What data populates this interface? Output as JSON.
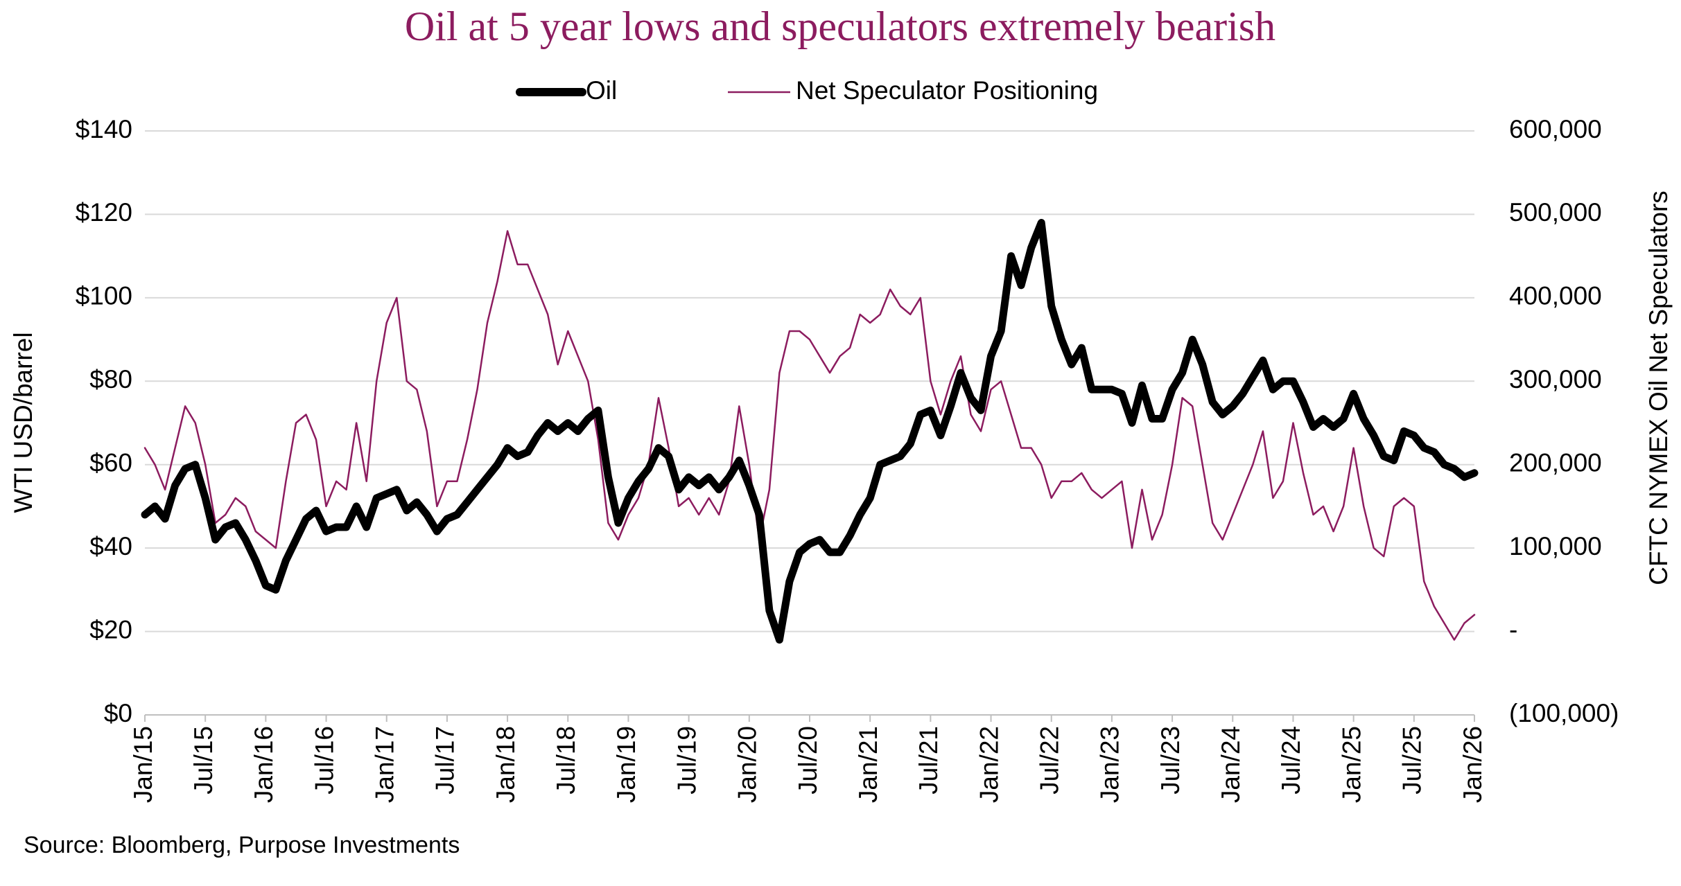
{
  "chart_data": {
    "type": "line",
    "title": "Oil at 5 year lows and speculators extremely bearish",
    "y_label": "WTI USD/barrel",
    "y2_label": "CFTC NYMEX Oil Net Speculators",
    "source": "Source: Bloomberg, Purpose Investments",
    "categories": [
      "Jan/15",
      null,
      null,
      null,
      null,
      null,
      "Jul/15",
      null,
      null,
      null,
      null,
      null,
      "Jan/16",
      null,
      null,
      null,
      null,
      null,
      "Jul/16",
      null,
      null,
      null,
      null,
      null,
      "Jan/17",
      null,
      null,
      null,
      null,
      null,
      "Jul/17",
      null,
      null,
      null,
      null,
      null,
      "Jan/18",
      null,
      null,
      null,
      null,
      null,
      "Jul/18",
      null,
      null,
      null,
      null,
      null,
      "Jan/19",
      null,
      null,
      null,
      null,
      null,
      "Jul/19",
      null,
      null,
      null,
      null,
      null,
      "Jan/20",
      null,
      null,
      null,
      null,
      null,
      "Jul/20",
      null,
      null,
      null,
      null,
      null,
      "Jan/21",
      null,
      null,
      null,
      null,
      null,
      "Jul/21",
      null,
      null,
      null,
      null,
      null,
      "Jan/22",
      null,
      null,
      null,
      null,
      null,
      "Jul/22",
      null,
      null,
      null,
      null,
      null,
      "Jan/23",
      null,
      null,
      null,
      null,
      null,
      "Jul/23",
      null,
      null,
      null,
      null,
      null,
      "Jan/24",
      null,
      null,
      null,
      null,
      null,
      "Jul/24",
      null,
      null,
      null,
      null,
      null,
      "Jan/25",
      null,
      null,
      null,
      null,
      null,
      "Jul/25",
      null,
      null,
      null,
      null,
      null,
      "Jan/26"
    ],
    "series": [
      {
        "name": "Oil",
        "color": "#000000",
        "axis": "y",
        "values": [
          48,
          50,
          47,
          55,
          59,
          60,
          52,
          42,
          45,
          46,
          42,
          37,
          31,
          30,
          37,
          42,
          47,
          49,
          44,
          45,
          45,
          50,
          45,
          52,
          53,
          54,
          49,
          51,
          48,
          44,
          47,
          48,
          51,
          54,
          57,
          60,
          64,
          62,
          63,
          67,
          70,
          68,
          70,
          68,
          71,
          73,
          57,
          46,
          52,
          56,
          59,
          64,
          62,
          54,
          57,
          55,
          57,
          54,
          57,
          61,
          55,
          48,
          25,
          18,
          32,
          39,
          41,
          42,
          39,
          39,
          43,
          48,
          52,
          60,
          61,
          62,
          65,
          72,
          73,
          67,
          74,
          82,
          76,
          73,
          86,
          92,
          110,
          103,
          112,
          118,
          98,
          90,
          84,
          88,
          78,
          78,
          78,
          77,
          70,
          79,
          71,
          71,
          78,
          82,
          90,
          84,
          75,
          72,
          74,
          77,
          81,
          85,
          78,
          80,
          80,
          75,
          69,
          71,
          69,
          71,
          77,
          71,
          67,
          62,
          61,
          68,
          67,
          64,
          63,
          60,
          59,
          57,
          58
        ]
      },
      {
        "name": "Net Speculator Positioning",
        "color": "#8c1c5f",
        "axis": "y2",
        "values": [
          220000,
          200000,
          170000,
          220000,
          270000,
          250000,
          200000,
          130000,
          140000,
          160000,
          150000,
          120000,
          110000,
          100000,
          180000,
          250000,
          260000,
          230000,
          150000,
          180000,
          170000,
          250000,
          180000,
          300000,
          370000,
          400000,
          300000,
          290000,
          240000,
          150000,
          180000,
          180000,
          230000,
          290000,
          370000,
          420000,
          480000,
          440000,
          440000,
          410000,
          380000,
          320000,
          360000,
          330000,
          300000,
          230000,
          130000,
          110000,
          140000,
          160000,
          200000,
          280000,
          220000,
          150000,
          160000,
          140000,
          160000,
          140000,
          180000,
          270000,
          200000,
          110000,
          170000,
          310000,
          360000,
          360000,
          350000,
          330000,
          310000,
          330000,
          340000,
          380000,
          370000,
          380000,
          410000,
          390000,
          380000,
          400000,
          300000,
          260000,
          300000,
          330000,
          260000,
          240000,
          290000,
          300000,
          260000,
          220000,
          220000,
          200000,
          160000,
          180000,
          180000,
          190000,
          170000,
          160000,
          170000,
          180000,
          100000,
          170000,
          110000,
          140000,
          200000,
          280000,
          270000,
          200000,
          130000,
          110000,
          140000,
          170000,
          200000,
          240000,
          160000,
          180000,
          250000,
          190000,
          140000,
          150000,
          120000,
          150000,
          220000,
          150000,
          100000,
          90000,
          150000,
          160000,
          150000,
          60000,
          30000,
          10000,
          -10000,
          10000,
          20000
        ]
      }
    ],
    "ylim": [
      0,
      140
    ],
    "yticks": [
      {
        "value": 0,
        "label": "$0"
      },
      {
        "value": 20,
        "label": "$20"
      },
      {
        "value": 40,
        "label": "$40"
      },
      {
        "value": 60,
        "label": "$60"
      },
      {
        "value": 80,
        "label": "$80"
      },
      {
        "value": 100,
        "label": "$100"
      },
      {
        "value": 120,
        "label": "$120"
      },
      {
        "value": 140,
        "label": "$140"
      }
    ],
    "y2lim": [
      -100000,
      600000
    ],
    "y2ticks": [
      {
        "value": -100000,
        "label": "(100,000)"
      },
      {
        "value": 0,
        "label": "-"
      },
      {
        "value": 100000,
        "label": "100,000"
      },
      {
        "value": 200000,
        "label": "200,000"
      },
      {
        "value": 300000,
        "label": "300,000"
      },
      {
        "value": 400000,
        "label": "400,000"
      },
      {
        "value": 500000,
        "label": "500,000"
      },
      {
        "value": 600000,
        "label": "600,000"
      }
    ],
    "grid": true
  }
}
